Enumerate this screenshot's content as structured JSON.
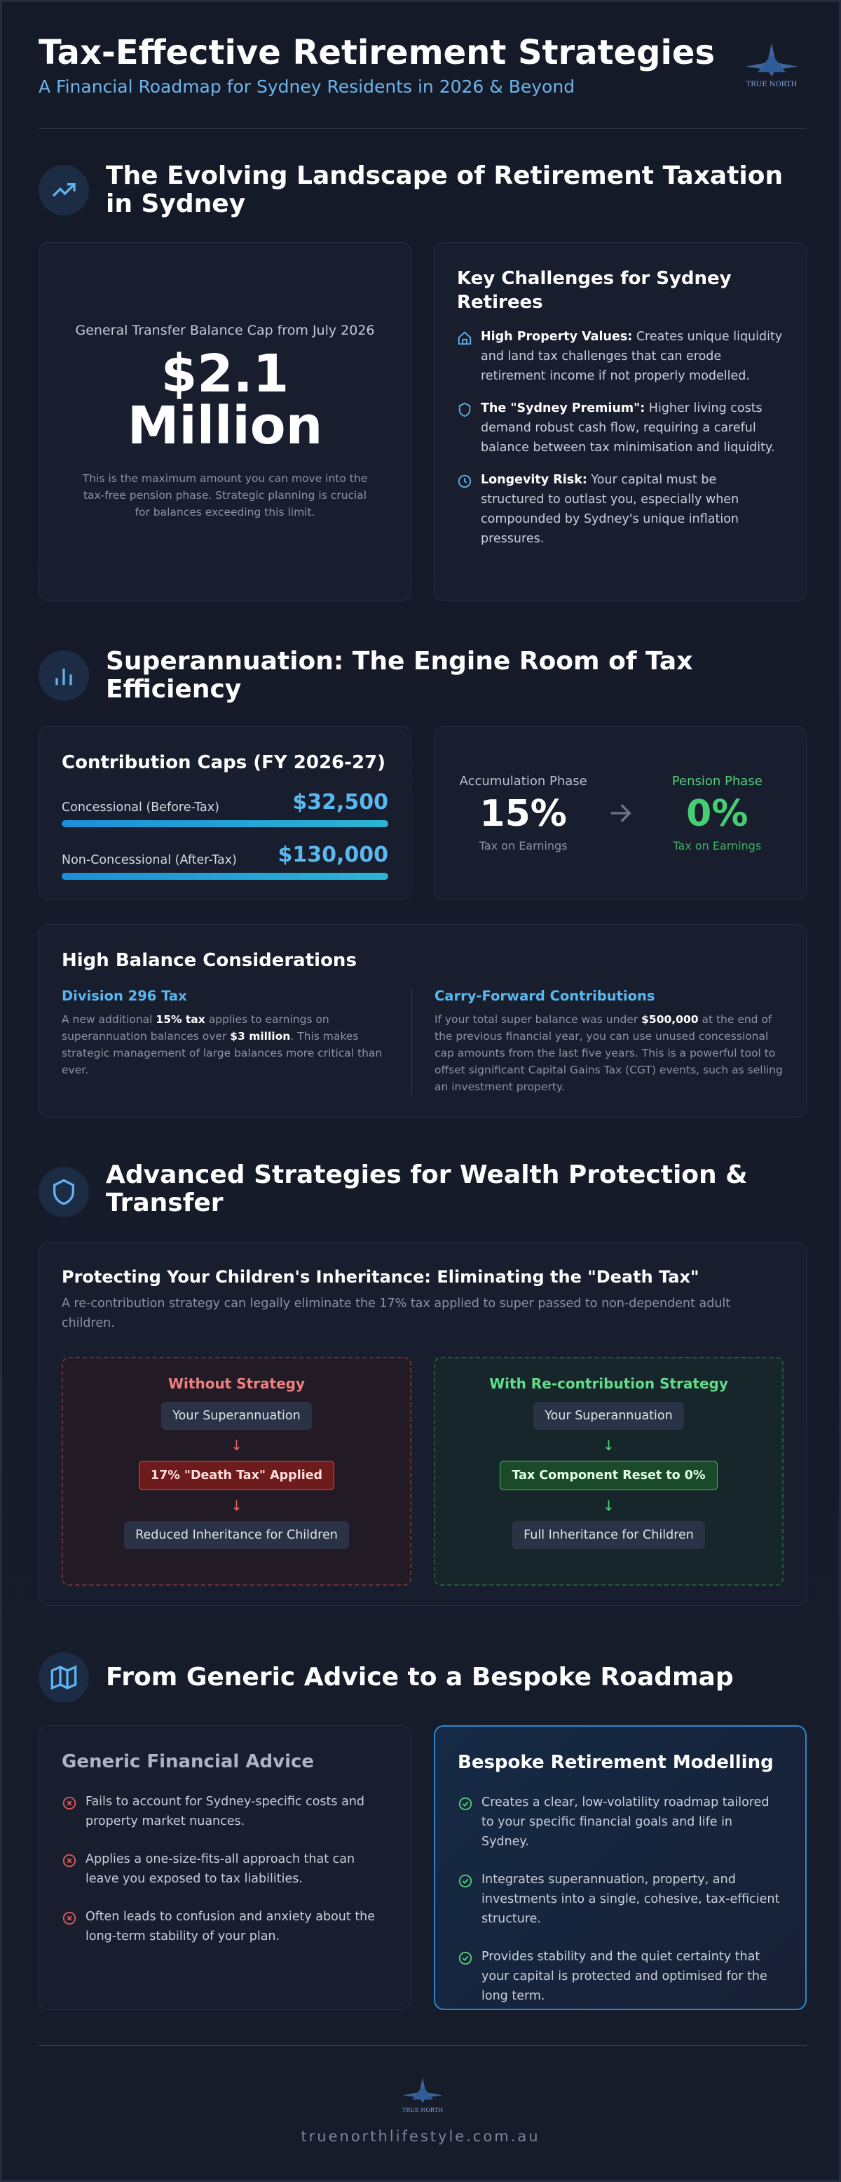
{
  "header": {
    "title": "Tax-Effective Retirement Strategies",
    "subtitle": "A Financial Roadmap for Sydney Residents in 2026 & Beyond",
    "logo_text": "TRUE NORTH"
  },
  "landscape": {
    "heading": "The Evolving Landscape of Retirement Taxation in Sydney",
    "cap_card": {
      "label": "General Transfer Balance Cap from July 2026",
      "amount": "$2.1 Million",
      "description": "This is the maximum amount you can move into the tax-free pension phase. Strategic planning is crucial for balances exceeding this limit."
    },
    "challenges": {
      "title": "Key Challenges for Sydney Retirees",
      "items": [
        {
          "lead": "High Property Values:",
          "text": "Creates unique liquidity and land tax challenges that can erode retirement income if not properly modelled."
        },
        {
          "lead": "The \"Sydney Premium\":",
          "text": "Higher living costs demand robust cash flow, requiring a careful balance between tax minimisation and liquidity."
        },
        {
          "lead": "Longevity Risk:",
          "text": "Your capital must be structured to outlast you, especially when compounded by Sydney's unique inflation pressures."
        }
      ]
    }
  },
  "super": {
    "heading": "Superannuation: The Engine Room of Tax Efficiency",
    "caps": {
      "title": "Contribution Caps (FY 2026-27)",
      "items": [
        {
          "label": "Concessional (Before-Tax)",
          "amount": "$32,500"
        },
        {
          "label": "Non-Concessional (After-Tax)",
          "amount": "$130,000"
        }
      ]
    },
    "phases": [
      {
        "label": "Accumulation Phase",
        "rate": "15%",
        "note": "Tax on Earnings"
      },
      {
        "label": "Pension Phase",
        "rate": "0%",
        "note": "Tax on Earnings"
      }
    ],
    "high_balance": {
      "title": "High Balance Considerations",
      "columns": [
        {
          "title": "Division 296 Tax",
          "parts": [
            {
              "text": "A new additional ",
              "bold": false
            },
            {
              "text": "15% tax",
              "bold": true
            },
            {
              "text": " applies to earnings on superannuation balances over ",
              "bold": false
            },
            {
              "text": "$3 million",
              "bold": true
            },
            {
              "text": ". This makes strategic management of large balances more critical than ever.",
              "bold": false
            }
          ]
        },
        {
          "title": "Carry-Forward Contributions",
          "parts": [
            {
              "text": "If your total super balance was under ",
              "bold": false
            },
            {
              "text": "$500,000",
              "bold": true
            },
            {
              "text": " at the end of the previous financial year, you can use unused concessional cap amounts from the last five years. This is a powerful tool to offset significant Capital Gains Tax (CGT) events, such as selling an investment property.",
              "bold": false
            }
          ]
        }
      ]
    }
  },
  "advanced": {
    "heading": "Advanced Strategies for Wealth Protection & Transfer",
    "title": "Protecting Your Children's Inheritance: Eliminating the \"Death Tax\"",
    "description": "A re-contribution strategy can legally eliminate the 17% tax applied to super passed to non-dependent adult children.",
    "flows": [
      {
        "title": "Without Strategy",
        "steps": [
          "Your Superannuation",
          "17% \"Death Tax\" Applied",
          "Reduced Inheritance for Children"
        ]
      },
      {
        "title": "With Re-contribution Strategy",
        "steps": [
          "Your Superannuation",
          "Tax Component Reset to 0%",
          "Full Inheritance for Children"
        ]
      }
    ]
  },
  "roadmap": {
    "heading": "From Generic Advice to a Bespoke Roadmap",
    "generic": {
      "title": "Generic Financial Advice",
      "items": [
        "Fails to account for Sydney-specific costs and property market nuances.",
        "Applies a one-size-fits-all approach that can leave you exposed to tax liabilities.",
        "Often leads to confusion and anxiety about the long-term stability of your plan."
      ]
    },
    "bespoke": {
      "title": "Bespoke Retirement Modelling",
      "items": [
        "Creates a clear, low-volatility roadmap tailored to your specific financial goals and life in Sydney.",
        "Integrates superannuation, property, and investments into a single, cohesive, tax-efficient structure.",
        "Provides stability and the quiet certainty that your capital is protected and optimised for the long term."
      ]
    }
  },
  "footer": {
    "logo_text": "TRUE NORTH",
    "url": "truenorthlifestyle.com.au"
  }
}
